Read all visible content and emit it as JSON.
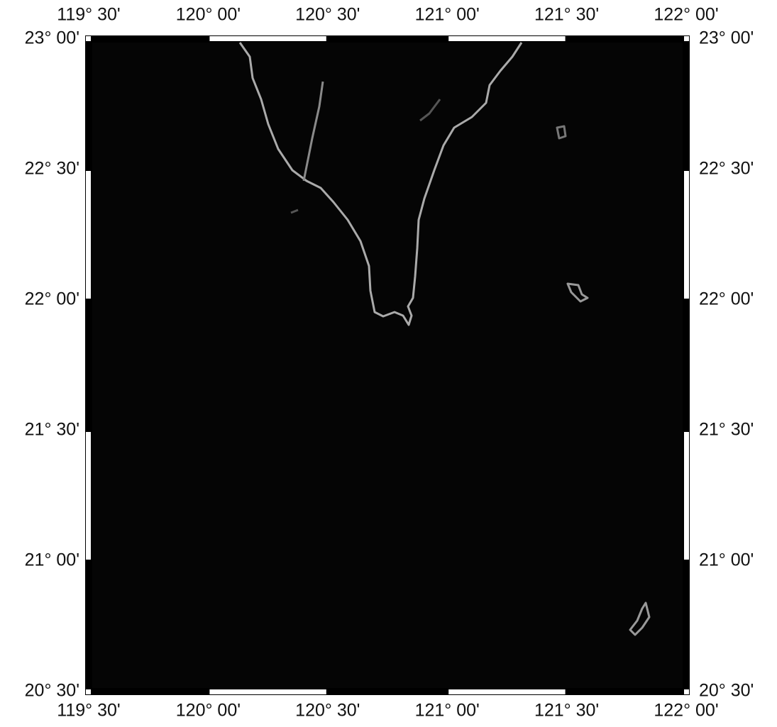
{
  "map": {
    "lon_labels": [
      "119° 30'",
      "120° 00'",
      "120° 30'",
      "121° 00'",
      "121° 30'",
      "122° 00'"
    ],
    "lat_labels": [
      "23° 00'",
      "22° 30'",
      "22° 00'",
      "21° 30'",
      "21° 00'",
      "20° 30'"
    ]
  }
}
